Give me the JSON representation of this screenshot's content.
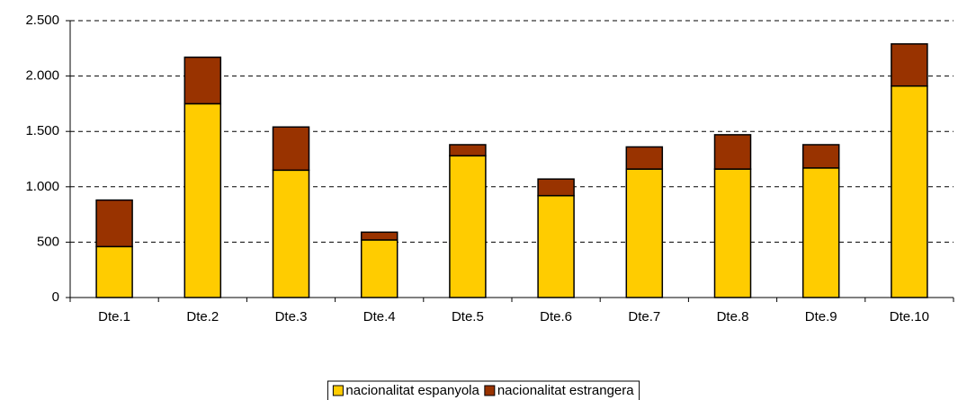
{
  "chart_data": {
    "type": "stacked_bar",
    "categories": [
      "Dte.1",
      "Dte.2",
      "Dte.3",
      "Dte.4",
      "Dte.5",
      "Dte.6",
      "Dte.7",
      "Dte.8",
      "Dte.9",
      "Dte.10"
    ],
    "series": [
      {
        "name": "nacionalitat espanyola",
        "color": "#ffcc00",
        "values": [
          460,
          1750,
          1150,
          520,
          1280,
          920,
          1160,
          1160,
          1170,
          1910
        ]
      },
      {
        "name": "nacionalitat estrangera",
        "color": "#993300",
        "values": [
          420,
          420,
          390,
          70,
          100,
          150,
          200,
          310,
          210,
          380
        ]
      }
    ],
    "ylim": [
      0,
      2500
    ],
    "yticks": [
      0,
      500,
      {
        "value": 1000,
        "label": "1.000"
      },
      {
        "value": 1500,
        "label": "1.500"
      },
      {
        "value": 2000,
        "label": "2.000"
      },
      {
        "value": 2500,
        "label": "2.500"
      }
    ],
    "grid": true,
    "legend": "bottom"
  }
}
